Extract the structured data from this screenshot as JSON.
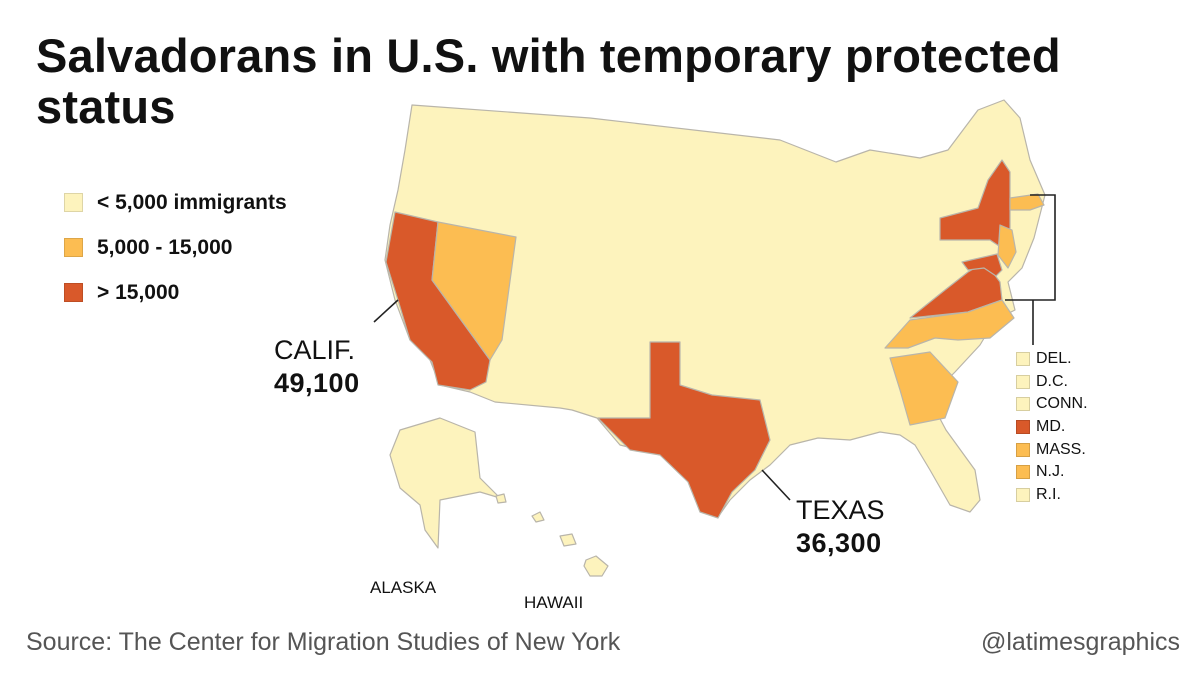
{
  "title": "Salvadorans in U.S. with temporary protected status",
  "colors": {
    "low": "#fdf3bd",
    "mid": "#fcbd52",
    "high": "#d9592a",
    "outline": "#b9b5aa"
  },
  "legend": [
    {
      "label": "< 5,000 immigrants",
      "level": "low"
    },
    {
      "label": "5,000 - 15,000",
      "level": "mid"
    },
    {
      "label": "> 15,000",
      "level": "high"
    }
  ],
  "callouts": {
    "california": {
      "name": "CALIF.",
      "value": "49,100"
    },
    "texas": {
      "name": "TEXAS",
      "value": "36,300"
    }
  },
  "labels": {
    "alaska": "ALASKA",
    "hawaii": "HAWAII"
  },
  "small_states": [
    {
      "label": "DEL.",
      "level": "low"
    },
    {
      "label": "D.C.",
      "level": "low"
    },
    {
      "label": "CONN.",
      "level": "low"
    },
    {
      "label": "MD.",
      "level": "high"
    },
    {
      "label": "MASS.",
      "level": "mid"
    },
    {
      "label": "N.J.",
      "level": "mid"
    },
    {
      "label": "R.I.",
      "level": "low"
    }
  ],
  "state_levels": {
    "CA": "high",
    "TX": "high",
    "NY": "high",
    "VA": "high",
    "MD": "high",
    "NV": "mid",
    "NC": "mid",
    "GA": "mid",
    "NJ": "mid",
    "MA": "mid"
  },
  "source": "Source: The Center for Migration Studies of New York",
  "credit": "@latimesgraphics"
}
